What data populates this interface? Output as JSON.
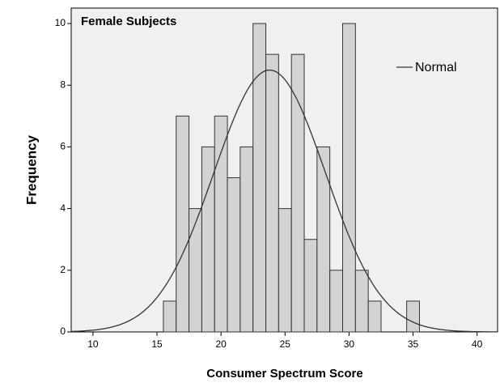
{
  "chart_data": {
    "type": "histogram",
    "title": "Female Subjects",
    "x_label": "Consumer Spectrum Score",
    "y_label": "Frequency",
    "bins": [
      15.5,
      16.5,
      17.5,
      18.5,
      19.5,
      20.5,
      21.5,
      22.5,
      23.5,
      24.5,
      25.5,
      26.5,
      27.5,
      28.5,
      29.5,
      30.5,
      31.5,
      32.5,
      33.5,
      34.5,
      35.5
    ],
    "counts": [
      1,
      7,
      4,
      6,
      7,
      5,
      6,
      10,
      9,
      4,
      9,
      3,
      6,
      2,
      10,
      2,
      1,
      0,
      0,
      1
    ],
    "color": "#d3d3d3",
    "normal": {
      "name": "Normal",
      "mean": 23.8,
      "sd": 4.37,
      "color": "#333333"
    },
    "xlim": [
      8.3,
      41.6
    ],
    "xticks": [
      10,
      15,
      20,
      25,
      30,
      35,
      40
    ],
    "ylim": [
      0,
      10.5
    ],
    "yticks": [
      0,
      2,
      4,
      6,
      8,
      10
    ]
  }
}
